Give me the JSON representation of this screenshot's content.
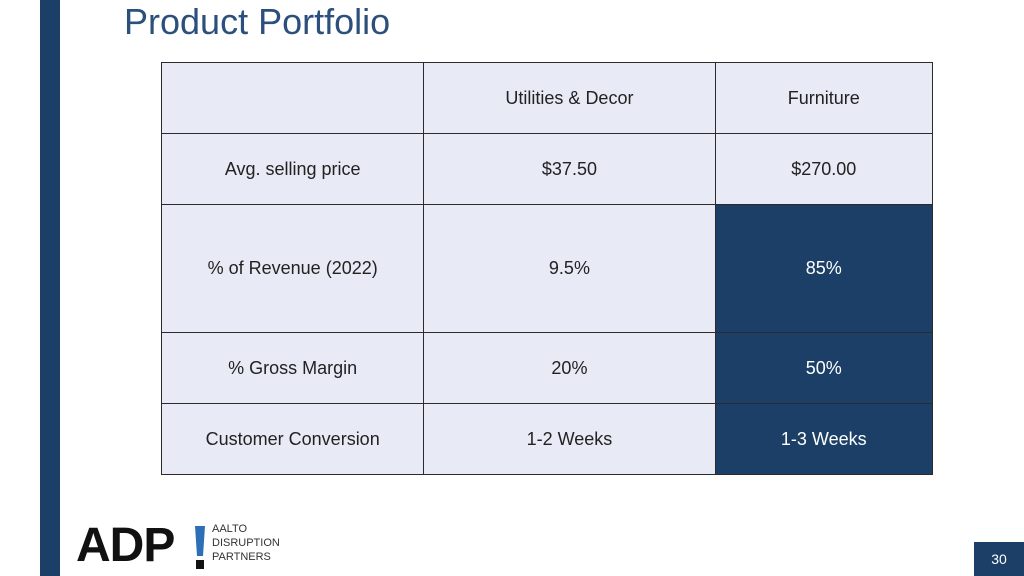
{
  "slide": {
    "title": "Product Portfolio",
    "page_number": "30"
  },
  "table": {
    "headers": [
      "",
      "Utilities & Decor",
      "Furniture"
    ],
    "rows": [
      [
        "Avg. selling price",
        "$37.50",
        "$270.00"
      ],
      [
        "% of Revenue (2022)",
        "9.5%",
        "85%"
      ],
      [
        "% Gross Margin",
        "20%",
        "50%"
      ],
      [
        "Customer Conversion",
        "1-2 Weeks",
        "1-3 Weeks"
      ]
    ]
  },
  "logo": {
    "letters": "ADP",
    "line1": "AALTO",
    "line2": "DISRUPTION",
    "line3": "PARTNERS"
  },
  "colors": {
    "accent": "#1b3f66",
    "title": "#2c4f7c",
    "cell": "#e8ebf5",
    "logo_mark": "#2d6fb7"
  }
}
